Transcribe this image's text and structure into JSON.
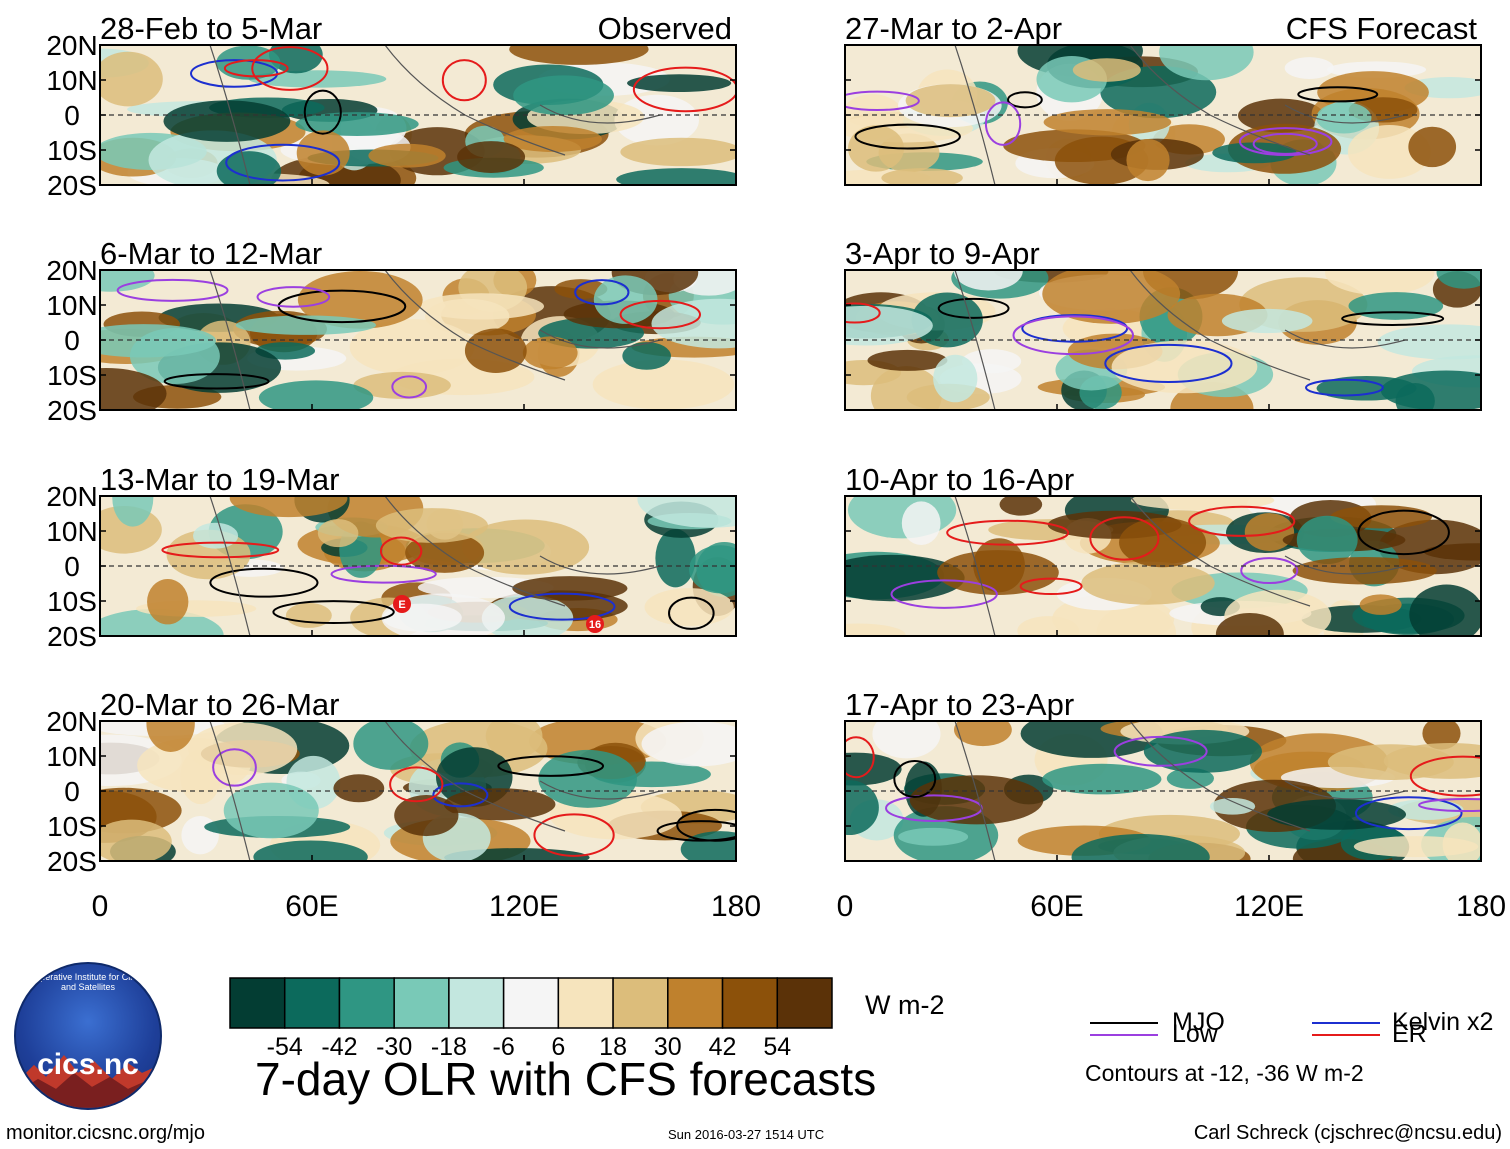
{
  "chart_data": {
    "type": "heatmap",
    "title": "7-day OLR with CFS forecasts",
    "x_ticks": [
      "0",
      "60E",
      "120E",
      "180"
    ],
    "y_ticks": [
      "20N",
      "10N",
      "0",
      "10S",
      "20S"
    ],
    "xlim": [
      0,
      180
    ],
    "ylim": [
      -20,
      20
    ],
    "columns": [
      {
        "label": "Observed",
        "panels": [
          "28-Feb to 5-Mar",
          "6-Mar to 12-Mar",
          "13-Mar to 19-Mar",
          "20-Mar to 26-Mar"
        ]
      },
      {
        "label": "CFS Forecast",
        "panels": [
          "27-Mar to 2-Apr",
          "3-Apr to 9-Apr",
          "10-Apr to 16-Apr",
          "17-Apr to 23-Apr"
        ]
      }
    ],
    "panel_annotations": [
      {
        "panel": "13-Mar to 19-Mar",
        "markers": [
          "E",
          "16"
        ]
      }
    ],
    "colorbar": {
      "colors": [
        "#033d33",
        "#0c6a5c",
        "#2f9683",
        "#79c9b7",
        "#c3e7df",
        "#f5f5f5",
        "#f6e4bd",
        "#dcbd7b",
        "#bf812d",
        "#8c510a",
        "#5b3208"
      ],
      "tick_labels": [
        "-54",
        "-42",
        "-30",
        "-18",
        "-6",
        "6",
        "18",
        "30",
        "42",
        "54"
      ],
      "units": "W m-2"
    },
    "legend": [
      {
        "label": "MJO",
        "color": "#000000"
      },
      {
        "label": "Kelvin x2",
        "color": "#1c2fd0"
      },
      {
        "label": "Low",
        "color": "#9b3fe0"
      },
      {
        "label": "ER",
        "color": "#e51b1b"
      }
    ],
    "contour_note": "Contours at -12, -36 W m-2"
  },
  "footer": {
    "left": "monitor.cicsnc.org/mjo",
    "middle": "Sun 2016-03-27 1514 UTC",
    "right": "Carl Schreck (cjschrec@ncsu.edu)"
  },
  "logo": {
    "text": "cics.nc",
    "ring_text": "Cooperative Institute for Climate and Satellites"
  }
}
